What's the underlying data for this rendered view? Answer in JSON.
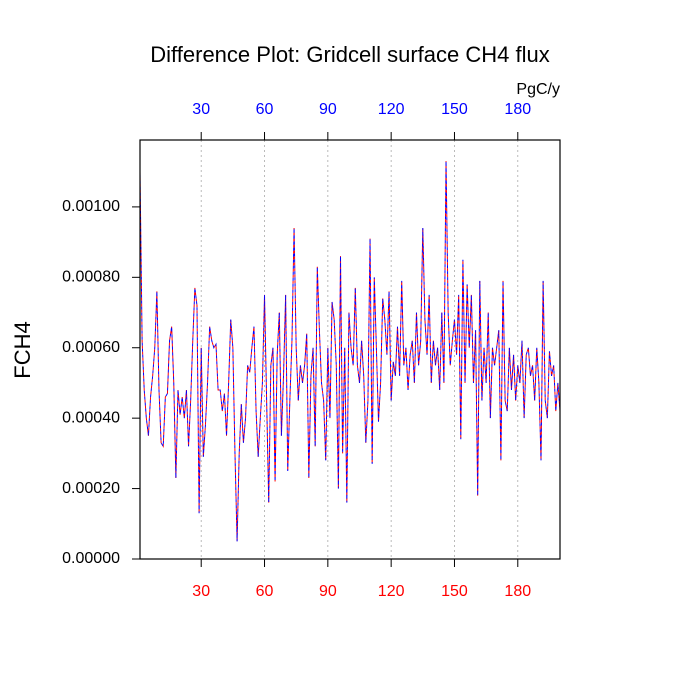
{
  "chart_data": {
    "type": "line",
    "title": "Difference Plot: Gridcell surface CH4 flux",
    "ylabel": "FCH4",
    "x2label": "PgC/y",
    "xlim": [
      1,
      200
    ],
    "xticks": [
      30,
      60,
      90,
      120,
      150,
      180
    ],
    "xtick_color": "#ff0000",
    "x2ticks": [
      30,
      60,
      90,
      120,
      150,
      180
    ],
    "x2tick_color": "#0000ff",
    "ylim": [
      0,
      0.00119
    ],
    "yticks": [
      {
        "value": 0,
        "label": "0.00000"
      },
      {
        "value": 0.0002,
        "label": "0.00020"
      },
      {
        "value": 0.0004,
        "label": "0.00040"
      },
      {
        "value": 0.0006,
        "label": "0.00060"
      },
      {
        "value": 0.0008,
        "label": "0.00080"
      },
      {
        "value": 0.001,
        "label": "0.00100"
      }
    ],
    "grid": true,
    "x": [
      1,
      2,
      3,
      4,
      5,
      6,
      7,
      8,
      9,
      10,
      11,
      12,
      13,
      14,
      15,
      16,
      17,
      18,
      19,
      20,
      21,
      22,
      23,
      24,
      25,
      26,
      27,
      28,
      29,
      30,
      31,
      32,
      33,
      34,
      35,
      36,
      37,
      38,
      39,
      40,
      41,
      42,
      43,
      44,
      45,
      46,
      47,
      48,
      49,
      50,
      51,
      52,
      53,
      54,
      55,
      56,
      57,
      58,
      59,
      60,
      61,
      62,
      63,
      64,
      65,
      66,
      67,
      68,
      69,
      70,
      71,
      72,
      73,
      74,
      75,
      76,
      77,
      78,
      79,
      80,
      81,
      82,
      83,
      84,
      85,
      86,
      87,
      88,
      89,
      90,
      91,
      92,
      93,
      94,
      95,
      96,
      97,
      98,
      99,
      100,
      101,
      102,
      103,
      104,
      105,
      106,
      107,
      108,
      109,
      110,
      111,
      112,
      113,
      114,
      115,
      116,
      117,
      118,
      119,
      120,
      121,
      122,
      123,
      124,
      125,
      126,
      127,
      128,
      129,
      130,
      131,
      132,
      133,
      134,
      135,
      136,
      137,
      138,
      139,
      140,
      141,
      142,
      143,
      144,
      145,
      146,
      147,
      148,
      149,
      150,
      151,
      152,
      153,
      154,
      155,
      156,
      157,
      158,
      159,
      160,
      161,
      162,
      163,
      164,
      165,
      166,
      167,
      168,
      169,
      170,
      171,
      172,
      173,
      174,
      175,
      176,
      177,
      178,
      179,
      180,
      181,
      182,
      183,
      184,
      185,
      186,
      187,
      188,
      189,
      190,
      191,
      192,
      193,
      194,
      195,
      196,
      197,
      198,
      199,
      200
    ],
    "series": [
      {
        "color": "#ff0000",
        "values": [
          0.0011,
          0.00062,
          0.00048,
          0.0004,
          0.00035,
          0.00046,
          0.00052,
          0.0006,
          0.00076,
          0.00048,
          0.00033,
          0.00032,
          0.00046,
          0.00047,
          0.00062,
          0.00066,
          0.0005,
          0.00023,
          0.00048,
          0.00041,
          0.00046,
          0.0004,
          0.00048,
          0.00032,
          0.00045,
          0.00062,
          0.00077,
          0.00072,
          0.00013,
          0.0006,
          0.00029,
          0.00038,
          0.0005,
          0.00066,
          0.00062,
          0.0006,
          0.00061,
          0.00048,
          0.00048,
          0.00042,
          0.00047,
          0.00035,
          0.0005,
          0.00068,
          0.0006,
          0.0003,
          5e-05,
          0.0003,
          0.00044,
          0.00033,
          0.0004,
          0.00055,
          0.00053,
          0.0006,
          0.00066,
          0.00042,
          0.00029,
          0.0004,
          0.0005,
          0.00075,
          0.00045,
          0.00016,
          0.00055,
          0.0006,
          0.00022,
          0.00058,
          0.0007,
          0.00035,
          0.00052,
          0.00075,
          0.00025,
          0.00045,
          0.00062,
          0.00094,
          0.0006,
          0.00045,
          0.00055,
          0.0005,
          0.00055,
          0.00064,
          0.00023,
          0.00052,
          0.0006,
          0.00032,
          0.00083,
          0.00065,
          0.0005,
          0.00045,
          0.00028,
          0.0006,
          0.0004,
          0.00073,
          0.00068,
          0.00055,
          0.0002,
          0.00086,
          0.0003,
          0.0006,
          0.00016,
          0.0007,
          0.0006,
          0.00055,
          0.00077,
          0.00055,
          0.0005,
          0.00062,
          0.00052,
          0.00033,
          0.00045,
          0.00091,
          0.00027,
          0.0008,
          0.0006,
          0.00039,
          0.0005,
          0.00074,
          0.00068,
          0.00058,
          0.00076,
          0.00045,
          0.00056,
          0.00052,
          0.00066,
          0.00052,
          0.00079,
          0.00055,
          0.0006,
          0.00048,
          0.00058,
          0.00062,
          0.0005,
          0.0007,
          0.00055,
          0.00062,
          0.00094,
          0.00068,
          0.00058,
          0.00075,
          0.0005,
          0.00062,
          0.00055,
          0.0006,
          0.00048,
          0.0007,
          0.0005,
          0.00113,
          0.0007,
          0.00055,
          0.00062,
          0.00068,
          0.00058,
          0.00075,
          0.00034,
          0.00085,
          0.0005,
          0.00078,
          0.0006,
          0.00075,
          0.0005,
          0.00065,
          0.00018,
          0.00079,
          0.00045,
          0.0006,
          0.0005,
          0.0007,
          0.0004,
          0.0006,
          0.00055,
          0.0006,
          0.00065,
          0.00028,
          0.00079,
          0.00045,
          0.00042,
          0.0006,
          0.00048,
          0.00058,
          0.00045,
          0.00055,
          0.0005,
          0.00062,
          0.0004,
          0.00058,
          0.0006,
          0.00052,
          0.00055,
          0.00045,
          0.0006,
          0.0005,
          0.00028,
          0.00079,
          0.00045,
          0.0004,
          0.00059,
          0.00052,
          0.00055,
          0.00042,
          0.0005,
          0.00042
        ]
      },
      {
        "color": "#0000ff",
        "values": [
          0.0011,
          0.00062,
          0.00048,
          0.0004,
          0.00035,
          0.00046,
          0.00052,
          0.0006,
          0.00076,
          0.00048,
          0.00033,
          0.00032,
          0.00046,
          0.00047,
          0.00062,
          0.00066,
          0.0005,
          0.00023,
          0.00048,
          0.00041,
          0.00046,
          0.0004,
          0.00048,
          0.00032,
          0.00045,
          0.00062,
          0.00077,
          0.00072,
          0.00013,
          0.0006,
          0.00029,
          0.00038,
          0.0005,
          0.00066,
          0.00062,
          0.0006,
          0.00061,
          0.00048,
          0.00048,
          0.00042,
          0.00047,
          0.00035,
          0.0005,
          0.00068,
          0.0006,
          0.0003,
          5e-05,
          0.0003,
          0.00044,
          0.00033,
          0.0004,
          0.00055,
          0.00053,
          0.0006,
          0.00066,
          0.00042,
          0.00029,
          0.0004,
          0.0005,
          0.00075,
          0.00045,
          0.00016,
          0.00055,
          0.0006,
          0.00022,
          0.00058,
          0.0007,
          0.00035,
          0.00052,
          0.00075,
          0.00025,
          0.00045,
          0.00062,
          0.00094,
          0.0006,
          0.00045,
          0.00055,
          0.0005,
          0.00055,
          0.00064,
          0.00023,
          0.00052,
          0.0006,
          0.00032,
          0.00083,
          0.00065,
          0.0005,
          0.00045,
          0.00028,
          0.0006,
          0.0004,
          0.00073,
          0.00068,
          0.00055,
          0.0002,
          0.00086,
          0.0003,
          0.0006,
          0.00016,
          0.0007,
          0.0006,
          0.00055,
          0.00077,
          0.00055,
          0.0005,
          0.00062,
          0.00052,
          0.00033,
          0.00045,
          0.00091,
          0.00027,
          0.0008,
          0.0006,
          0.00039,
          0.0005,
          0.00074,
          0.00068,
          0.00058,
          0.00076,
          0.00045,
          0.00056,
          0.00052,
          0.00066,
          0.00052,
          0.00079,
          0.00055,
          0.0006,
          0.00048,
          0.00058,
          0.00062,
          0.0005,
          0.0007,
          0.00055,
          0.00062,
          0.00094,
          0.00068,
          0.00058,
          0.00075,
          0.0005,
          0.00062,
          0.00055,
          0.0006,
          0.00048,
          0.0007,
          0.0005,
          0.00113,
          0.0007,
          0.00055,
          0.00062,
          0.00068,
          0.00058,
          0.00075,
          0.00034,
          0.00085,
          0.0005,
          0.00078,
          0.0006,
          0.00075,
          0.0005,
          0.00065,
          0.00018,
          0.00079,
          0.00045,
          0.0006,
          0.0005,
          0.0007,
          0.0004,
          0.0006,
          0.00055,
          0.0006,
          0.00065,
          0.00028,
          0.00079,
          0.00045,
          0.00042,
          0.0006,
          0.00048,
          0.00058,
          0.00045,
          0.00055,
          0.0005,
          0.00062,
          0.0004,
          0.00058,
          0.0006,
          0.00052,
          0.00055,
          0.00045,
          0.0006,
          0.0005,
          0.00028,
          0.00079,
          0.00045,
          0.0004,
          0.00059,
          0.00052,
          0.00055,
          0.00042,
          0.0005,
          0.00042
        ]
      }
    ]
  }
}
